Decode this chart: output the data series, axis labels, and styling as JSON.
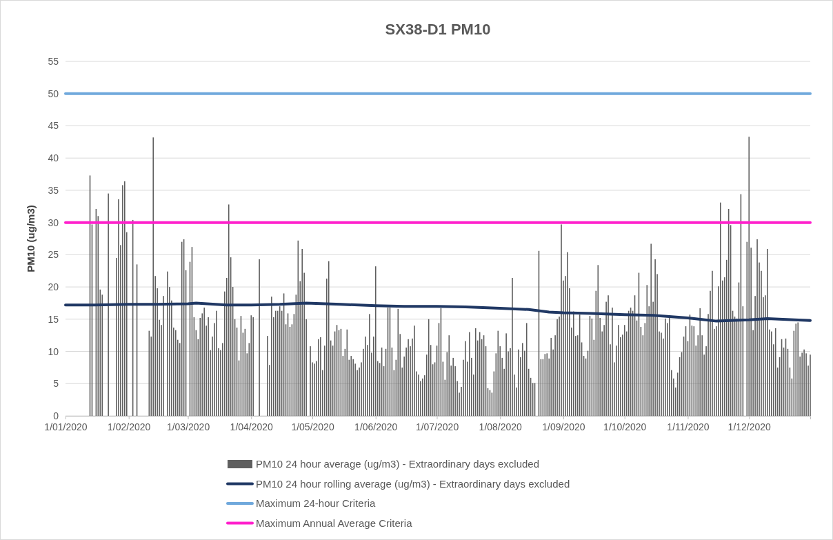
{
  "chart_data": {
    "type": "bar",
    "title": "SX38-D1 PM10",
    "ylabel": "PM10 (ug/m3)",
    "xlim": [
      "2020-01-01",
      "2020-12-31"
    ],
    "xticks": [
      {
        "value": "2020-01-01",
        "label": "1/01/2020"
      },
      {
        "value": "2020-02-01",
        "label": "1/02/2020"
      },
      {
        "value": "2020-03-01",
        "label": "1/03/2020"
      },
      {
        "value": "2020-04-01",
        "label": "1/04/2020"
      },
      {
        "value": "2020-05-01",
        "label": "1/05/2020"
      },
      {
        "value": "2020-06-01",
        "label": "1/06/2020"
      },
      {
        "value": "2020-07-01",
        "label": "1/07/2020"
      },
      {
        "value": "2020-08-01",
        "label": "1/08/2020"
      },
      {
        "value": "2020-09-01",
        "label": "1/09/2020"
      },
      {
        "value": "2020-10-01",
        "label": "1/10/2020"
      },
      {
        "value": "2020-11-01",
        "label": "1/11/2020"
      },
      {
        "value": "2020-12-01",
        "label": "1/12/2020"
      }
    ],
    "ylim": [
      0,
      55
    ],
    "yticks": [
      0,
      5,
      10,
      15,
      20,
      25,
      30,
      35,
      40,
      45,
      50,
      55
    ],
    "grid": "y",
    "legend": "bottom",
    "series": [
      {
        "name": "PM10 24 hour average (ug/m3)  - Extraordinary days excluded",
        "color": "#5f5f5f",
        "x": [
          "2020-01-13",
          "2020-01-14",
          "2020-01-16",
          "2020-01-17",
          "2020-01-18",
          "2020-01-19",
          "2020-01-22",
          "2020-01-26",
          "2020-01-27",
          "2020-01-28",
          "2020-01-29",
          "2020-01-30",
          "2020-01-31",
          "2020-02-03",
          "2020-02-05",
          "2020-02-11",
          "2020-02-12",
          "2020-02-13",
          "2020-02-14",
          "2020-02-15",
          "2020-02-16",
          "2020-02-17",
          "2020-02-18",
          "2020-02-20",
          "2020-02-21",
          "2020-02-22",
          "2020-02-23",
          "2020-02-24",
          "2020-02-25",
          "2020-02-26",
          "2020-02-27",
          "2020-02-28",
          "2020-02-29",
          "2020-03-02",
          "2020-03-03",
          "2020-03-04",
          "2020-03-05",
          "2020-03-06",
          "2020-03-07",
          "2020-03-08",
          "2020-03-09",
          "2020-03-10",
          "2020-03-11",
          "2020-03-12",
          "2020-03-13",
          "2020-03-14",
          "2020-03-15",
          "2020-03-16",
          "2020-03-17",
          "2020-03-18",
          "2020-03-19",
          "2020-03-20",
          "2020-03-21",
          "2020-03-22",
          "2020-03-23",
          "2020-03-24",
          "2020-03-25",
          "2020-03-26",
          "2020-03-27",
          "2020-03-28",
          "2020-03-29",
          "2020-03-30",
          "2020-03-31",
          "2020-04-01",
          "2020-04-02",
          "2020-04-05",
          "2020-04-09",
          "2020-04-10",
          "2020-04-11",
          "2020-04-12",
          "2020-04-13",
          "2020-04-14",
          "2020-04-15",
          "2020-04-16",
          "2020-04-17",
          "2020-04-18",
          "2020-04-19",
          "2020-04-20",
          "2020-04-21",
          "2020-04-22",
          "2020-04-23",
          "2020-04-24",
          "2020-04-25",
          "2020-04-26",
          "2020-04-27",
          "2020-04-28",
          "2020-04-30",
          "2020-05-01",
          "2020-05-02",
          "2020-05-03",
          "2020-05-04",
          "2020-05-05",
          "2020-05-06",
          "2020-05-07",
          "2020-05-08",
          "2020-05-09",
          "2020-05-10",
          "2020-05-11",
          "2020-05-12",
          "2020-05-13",
          "2020-05-14",
          "2020-05-15",
          "2020-05-16",
          "2020-05-17",
          "2020-05-18",
          "2020-05-19",
          "2020-05-20",
          "2020-05-21",
          "2020-05-22",
          "2020-05-23",
          "2020-05-24",
          "2020-05-25",
          "2020-05-26",
          "2020-05-27",
          "2020-05-28",
          "2020-05-29",
          "2020-05-30",
          "2020-05-31",
          "2020-06-01",
          "2020-06-02",
          "2020-06-03",
          "2020-06-04",
          "2020-06-05",
          "2020-06-06",
          "2020-06-07",
          "2020-06-08",
          "2020-06-09",
          "2020-06-10",
          "2020-06-11",
          "2020-06-12",
          "2020-06-13",
          "2020-06-14",
          "2020-06-15",
          "2020-06-16",
          "2020-06-17",
          "2020-06-18",
          "2020-06-19",
          "2020-06-20",
          "2020-06-21",
          "2020-06-22",
          "2020-06-23",
          "2020-06-24",
          "2020-06-25",
          "2020-06-26",
          "2020-06-27",
          "2020-06-28",
          "2020-06-29",
          "2020-06-30",
          "2020-07-01",
          "2020-07-02",
          "2020-07-03",
          "2020-07-04",
          "2020-07-05",
          "2020-07-06",
          "2020-07-07",
          "2020-07-08",
          "2020-07-09",
          "2020-07-10",
          "2020-07-11",
          "2020-07-12",
          "2020-07-13",
          "2020-07-14",
          "2020-07-15",
          "2020-07-16",
          "2020-07-17",
          "2020-07-18",
          "2020-07-19",
          "2020-07-20",
          "2020-07-21",
          "2020-07-22",
          "2020-07-23",
          "2020-07-24",
          "2020-07-25",
          "2020-07-26",
          "2020-07-27",
          "2020-07-28",
          "2020-07-29",
          "2020-07-30",
          "2020-07-31",
          "2020-08-01",
          "2020-08-02",
          "2020-08-03",
          "2020-08-04",
          "2020-08-05",
          "2020-08-06",
          "2020-08-07",
          "2020-08-08",
          "2020-08-09",
          "2020-08-10",
          "2020-08-11",
          "2020-08-12",
          "2020-08-13",
          "2020-08-14",
          "2020-08-15",
          "2020-08-16",
          "2020-08-17",
          "2020-08-18",
          "2020-08-20",
          "2020-08-21",
          "2020-08-22",
          "2020-08-23",
          "2020-08-24",
          "2020-08-25",
          "2020-08-26",
          "2020-08-27",
          "2020-08-28",
          "2020-08-29",
          "2020-08-30",
          "2020-08-31",
          "2020-09-01",
          "2020-09-02",
          "2020-09-03",
          "2020-09-04",
          "2020-09-05",
          "2020-09-06",
          "2020-09-07",
          "2020-09-08",
          "2020-09-09",
          "2020-09-10",
          "2020-09-11",
          "2020-09-12",
          "2020-09-13",
          "2020-09-14",
          "2020-09-15",
          "2020-09-16",
          "2020-09-17",
          "2020-09-18",
          "2020-09-19",
          "2020-09-20",
          "2020-09-21",
          "2020-09-22",
          "2020-09-23",
          "2020-09-24",
          "2020-09-25",
          "2020-09-26",
          "2020-09-27",
          "2020-09-28",
          "2020-09-29",
          "2020-09-30",
          "2020-10-01",
          "2020-10-02",
          "2020-10-03",
          "2020-10-04",
          "2020-10-05",
          "2020-10-06",
          "2020-10-07",
          "2020-10-08",
          "2020-10-09",
          "2020-10-10",
          "2020-10-11",
          "2020-10-12",
          "2020-10-13",
          "2020-10-14",
          "2020-10-15",
          "2020-10-16",
          "2020-10-17",
          "2020-10-18",
          "2020-10-19",
          "2020-10-20",
          "2020-10-21",
          "2020-10-22",
          "2020-10-23",
          "2020-10-24",
          "2020-10-25",
          "2020-10-26",
          "2020-10-27",
          "2020-10-28",
          "2020-10-29",
          "2020-10-30",
          "2020-10-31",
          "2020-11-01",
          "2020-11-02",
          "2020-11-03",
          "2020-11-04",
          "2020-11-05",
          "2020-11-06",
          "2020-11-07",
          "2020-11-08",
          "2020-11-09",
          "2020-11-10",
          "2020-11-11",
          "2020-11-12",
          "2020-11-13",
          "2020-11-14",
          "2020-11-15",
          "2020-11-16",
          "2020-11-17",
          "2020-11-18",
          "2020-11-19",
          "2020-11-20",
          "2020-11-21",
          "2020-11-22",
          "2020-11-23",
          "2020-11-24",
          "2020-11-25",
          "2020-11-26",
          "2020-11-27",
          "2020-11-28",
          "2020-11-30",
          "2020-12-01",
          "2020-12-02",
          "2020-12-03",
          "2020-12-04",
          "2020-12-05",
          "2020-12-06",
          "2020-12-07",
          "2020-12-08",
          "2020-12-09",
          "2020-12-10",
          "2020-12-11",
          "2020-12-12",
          "2020-12-13",
          "2020-12-14",
          "2020-12-15",
          "2020-12-16",
          "2020-12-17",
          "2020-12-18",
          "2020-12-19",
          "2020-12-20",
          "2020-12-21",
          "2020-12-22",
          "2020-12-23",
          "2020-12-24",
          "2020-12-25",
          "2020-12-26",
          "2020-12-27",
          "2020-12-28",
          "2020-12-29",
          "2020-12-30",
          "2020-12-31"
        ],
        "values": [
          37.3,
          29.7,
          32.1,
          31,
          19.6,
          18.8,
          34.5,
          24.5,
          33.6,
          26.5,
          35.8,
          36.4,
          28.5,
          30.4,
          23.5,
          13.2,
          12.3,
          43.2,
          21.7,
          19.8,
          14.9,
          14.1,
          18.6,
          22.4,
          20.0,
          17.9,
          13.7,
          13.3,
          11.8,
          11.3,
          27.0,
          27.4,
          22.6,
          23.9,
          26.2,
          15.3,
          13.3,
          11.9,
          15.2,
          15.9,
          16.8,
          14.0,
          15.3,
          10.2,
          12.3,
          14.4,
          16.3,
          10.5,
          10.2,
          11.3,
          19.3,
          21.4,
          32.8,
          24.6,
          20.0,
          15.0,
          13.7,
          8.6,
          15.5,
          12.9,
          13.5,
          9.7,
          11.3,
          15.6,
          15.3,
          24.3,
          12.4,
          7.9,
          18.5,
          15.3,
          16.3,
          16.3,
          17.0,
          16.3,
          19.0,
          14.2,
          15.9,
          13.8,
          14.2,
          15.8,
          18.8,
          27.2,
          20.9,
          25.9,
          22.2,
          15.0,
          10.8,
          8.3,
          8.1,
          8.5,
          11.9,
          12.2,
          7.1,
          10.9,
          21.3,
          24.0,
          11.7,
          10.9,
          13.1,
          14.1,
          13.3,
          13.5,
          9.3,
          10.4,
          13.4,
          8.7,
          9.3,
          8.8,
          8.1,
          7.1,
          7.5,
          8.3,
          10.4,
          12.3,
          11.0,
          15.8,
          9.8,
          12.3,
          23.2,
          8.5,
          8.2,
          10.6,
          7.7,
          10.4,
          16.8,
          16.8,
          10.6,
          7.1,
          8.7,
          16.6,
          12.7,
          7.5,
          9.2,
          10.6,
          11.9,
          10.8,
          12.0,
          14.0,
          6.9,
          6.4,
          5.4,
          5.8,
          6.3,
          9.5,
          15.0,
          11.0,
          8.0,
          8.3,
          10.9,
          14.4,
          16.7,
          8.4,
          5.6,
          9.9,
          12.5,
          7.8,
          9.0,
          7.7,
          5.4,
          3.6,
          4.5,
          8.7,
          11.6,
          8.4,
          13.0,
          9.0,
          6.4,
          13.6,
          11.7,
          13.0,
          11.9,
          12.5,
          10.8,
          4.3,
          4.0,
          3.6,
          6.9,
          9.7,
          13.2,
          10.8,
          9.0,
          7.3,
          12.8,
          10.0,
          10.5,
          21.4,
          6.4,
          4.4,
          10.3,
          9.1,
          11.3,
          10.1,
          14.4,
          7.3,
          5.9,
          5.1,
          5.1,
          25.6,
          8.8,
          8.8,
          9.6,
          9.7,
          8.9,
          12.1,
          10.3,
          12.5,
          15.0,
          15.4,
          29.7,
          21.0,
          21.7,
          25.4,
          19.8,
          13.7,
          16.2,
          12.4,
          12.5,
          15.7,
          11.4,
          9.3,
          8.9,
          10.1,
          15.5,
          15.1,
          11.8,
          19.4,
          23.4,
          15.2,
          13.1,
          14.1,
          17.7,
          18.7,
          11.1,
          16.8,
          8.3,
          10.9,
          14.1,
          12.2,
          12.6,
          14.1,
          13.1,
          16.3,
          16.8,
          16.3,
          18.7,
          14.8,
          22.2,
          13.8,
          12.5,
          14.4,
          20.3,
          17.0,
          26.7,
          17.7,
          24.3,
          22.0,
          13.1,
          12.9,
          12.0,
          15.1,
          14.4,
          15.6,
          7.1,
          5.8,
          4.4,
          6.7,
          9.1,
          9.9,
          12.3,
          13.9,
          11.6,
          15.7,
          14.0,
          13.9,
          10.9,
          12.5,
          16.7,
          12.5,
          9.5,
          10.8,
          15.8,
          19.4,
          22.5,
          13.5,
          13.9,
          20.1,
          33.1,
          21.0,
          21.5,
          24.2,
          32.1,
          29.6,
          16.3,
          15.4,
          15.1,
          20.7,
          34.4,
          17.0,
          27.0,
          43.3,
          26.1,
          13.3,
          18.6,
          27.4,
          23.8,
          22.5,
          18.4,
          18.7,
          25.9,
          13.4,
          13.1,
          11.1,
          13.6,
          7.5,
          9.1,
          11.9,
          10.6,
          12.0,
          10.4,
          7.5,
          5.8,
          13.2,
          14.3,
          14.5,
          9.2,
          9.8,
          10.3,
          9.7,
          7.8,
          9.5
        ]
      },
      {
        "name": "PM10 24 hour rolling average (ug/m3)  - Extraordinary days excluded",
        "type": "line",
        "color": "#203864",
        "x": [
          "2020-01-01",
          "2020-01-15",
          "2020-02-01",
          "2020-02-15",
          "2020-03-01",
          "2020-03-05",
          "2020-03-20",
          "2020-04-01",
          "2020-04-15",
          "2020-04-28",
          "2020-05-15",
          "2020-06-01",
          "2020-06-15",
          "2020-07-01",
          "2020-07-15",
          "2020-08-01",
          "2020-08-15",
          "2020-08-25",
          "2020-09-01",
          "2020-09-15",
          "2020-10-01",
          "2020-10-15",
          "2020-11-01",
          "2020-11-15",
          "2020-12-01",
          "2020-12-10",
          "2020-12-31"
        ],
        "values": [
          17.2,
          17.2,
          17.3,
          17.3,
          17.4,
          17.5,
          17.2,
          17.2,
          17.3,
          17.5,
          17.3,
          17.1,
          17.0,
          17.0,
          16.9,
          16.7,
          16.5,
          16.1,
          16.0,
          15.9,
          15.7,
          15.6,
          15.2,
          14.7,
          14.9,
          15.1,
          14.8
        ]
      },
      {
        "name": "Maximum 24-hour Criteria",
        "type": "line",
        "color": "#6fa8dc",
        "x": [
          "2020-01-01",
          "2020-12-31"
        ],
        "values": [
          50,
          50
        ]
      },
      {
        "name": "Maximum Annual Average Criteria",
        "type": "line",
        "color": "#ff1fcc",
        "x": [
          "2020-01-01",
          "2020-12-31"
        ],
        "values": [
          30,
          30
        ]
      }
    ]
  }
}
